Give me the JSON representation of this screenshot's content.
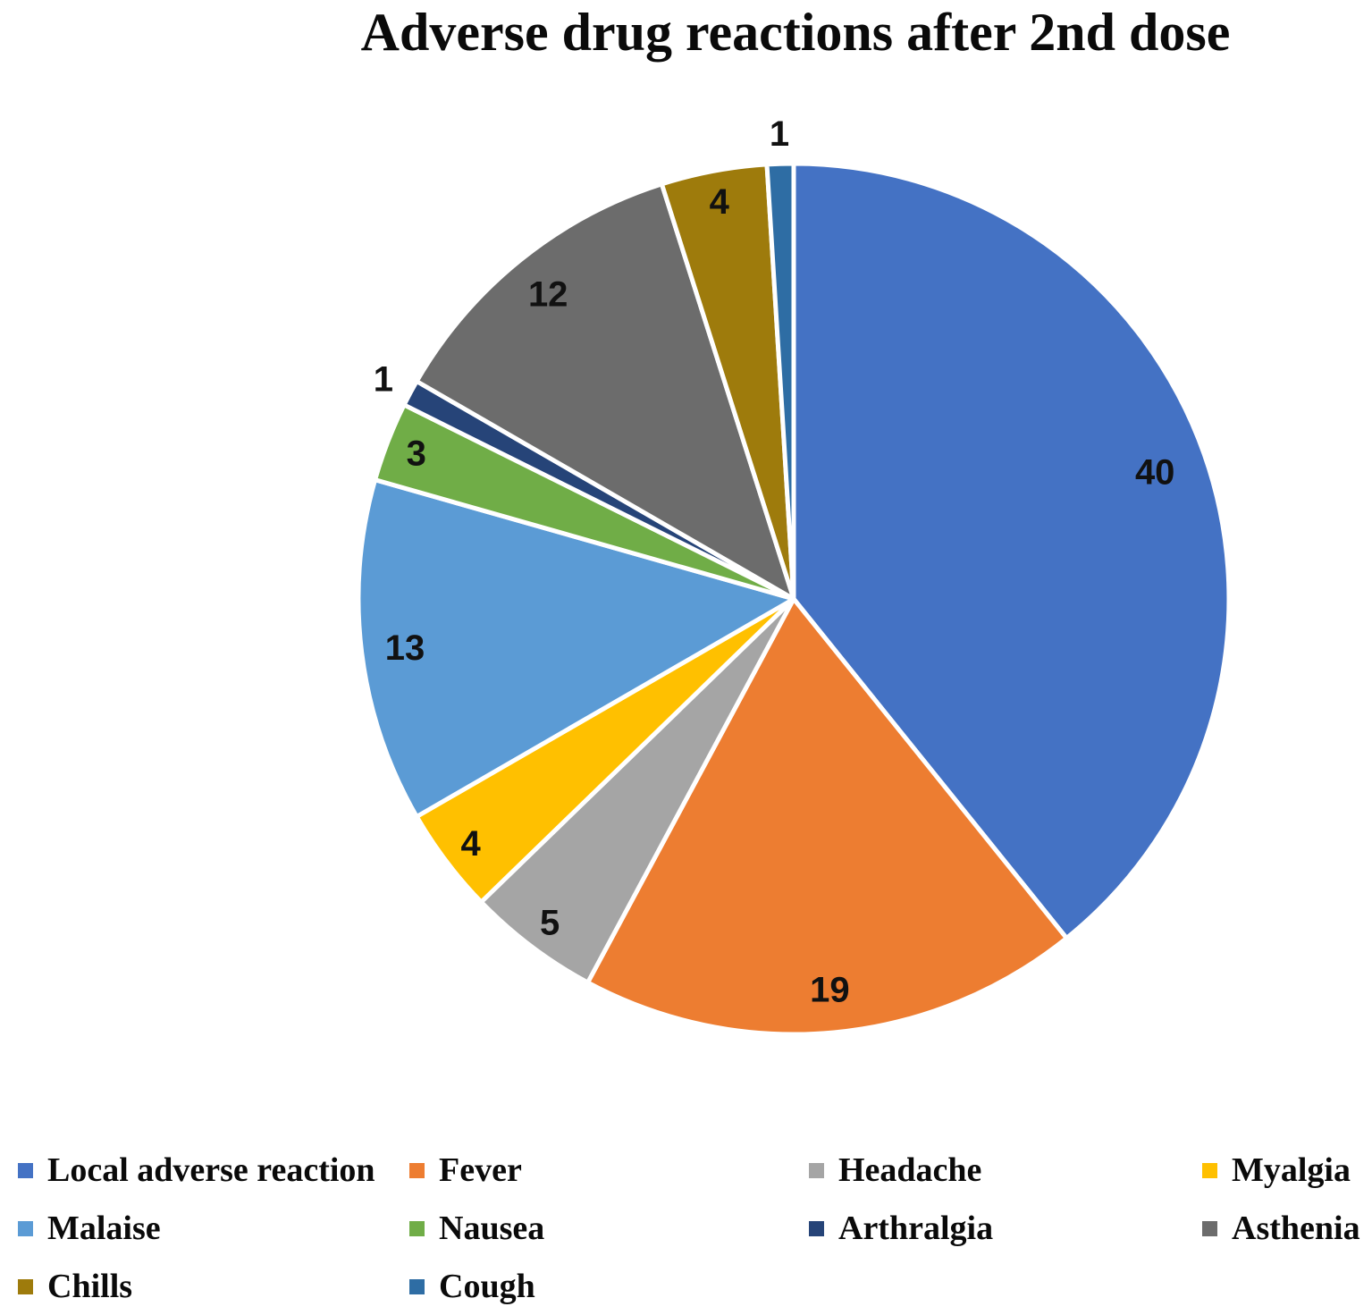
{
  "title": "Adverse drug reactions after 2nd dose",
  "chart_data": {
    "type": "pie",
    "title": "Adverse drug reactions after 2nd dose",
    "total": 102,
    "start_angle_deg": 0,
    "direction": "clockwise",
    "legend_position": "bottom",
    "slice_border_color": "#ffffff",
    "label_color": "#111111",
    "series": [
      {
        "label": "Local adverse reaction",
        "value": 40,
        "color": "#4472C4"
      },
      {
        "label": "Fever",
        "value": 19,
        "color": "#ED7D31"
      },
      {
        "label": "Headache",
        "value": 5,
        "color": "#A5A5A5"
      },
      {
        "label": "Myalgia",
        "value": 4,
        "color": "#FFC000"
      },
      {
        "label": "Malaise",
        "value": 13,
        "color": "#5B9BD5"
      },
      {
        "label": "Nausea",
        "value": 3,
        "color": "#70AD47"
      },
      {
        "label": "Arthralgia",
        "value": 1,
        "color": "#264478"
      },
      {
        "label": "Asthenia",
        "value": 12,
        "color": "#6C6C6C"
      },
      {
        "label": "Chills",
        "value": 4,
        "color": "#9E7B0C"
      },
      {
        "label": "Cough",
        "value": 1,
        "color": "#2E6DA4"
      }
    ]
  }
}
